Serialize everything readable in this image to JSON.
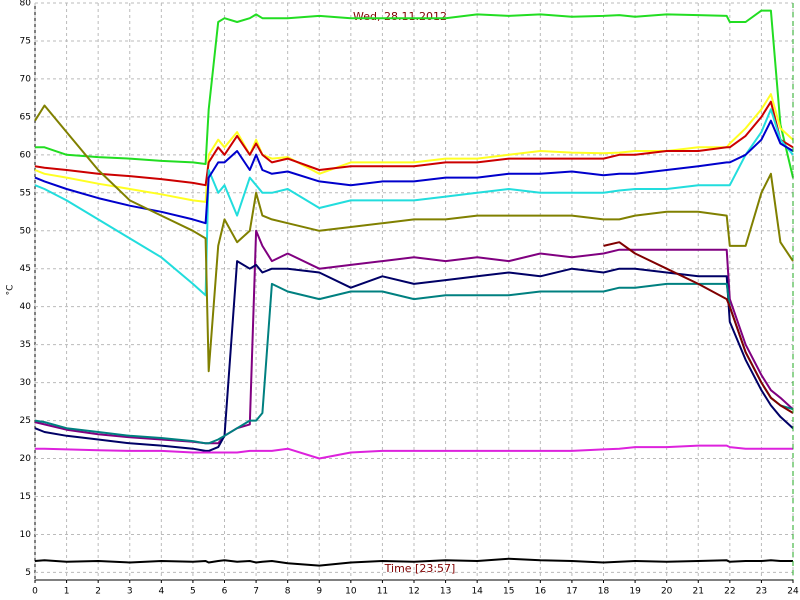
{
  "chart_data": {
    "type": "line",
    "title": "Wed, 28.11.2012",
    "xlabel": "Time [23:57]",
    "ylabel": "°C",
    "x": [
      0,
      0.3,
      1,
      2,
      3,
      4,
      5,
      5.4,
      5.5,
      5.8,
      6,
      6.4,
      6.8,
      7,
      7.2,
      7.5,
      8,
      9,
      10,
      11,
      12,
      13,
      14,
      15,
      16,
      17,
      18,
      18.5,
      19,
      20,
      21,
      21.9,
      22,
      22.5,
      23,
      23.3,
      23.6,
      24
    ],
    "xlim": [
      0,
      24
    ],
    "xticks": [
      0,
      1,
      2,
      3,
      4,
      5,
      6,
      7,
      8,
      9,
      10,
      11,
      12,
      13,
      14,
      15,
      16,
      17,
      18,
      19,
      20,
      21,
      22,
      23,
      24
    ],
    "ylim": [
      4,
      80
    ],
    "yticks": [
      5,
      10,
      15,
      20,
      25,
      30,
      35,
      40,
      45,
      50,
      55,
      60,
      65,
      70,
      75,
      80
    ],
    "grid": true,
    "cursor": 24,
    "cursor_color": "#22aa22",
    "series": [
      {
        "color": "#22dd22",
        "values": [
          61,
          61,
          60,
          59.7,
          59.5,
          59.2,
          59,
          58.8,
          66,
          77.5,
          78,
          77.5,
          78,
          78.5,
          78,
          78,
          78,
          78.3,
          78,
          78,
          78,
          78,
          78.5,
          78.3,
          78.5,
          78.2,
          78.3,
          78.4,
          78.2,
          78.5,
          78.4,
          78.3,
          77.5,
          77.5,
          79,
          79,
          64,
          57
        ]
      },
      {
        "color": "#ffff22",
        "values": [
          58,
          57.5,
          57,
          56.2,
          55.5,
          54.8,
          54,
          53.8,
          60,
          62,
          61,
          63,
          60,
          62,
          60,
          59.5,
          59.7,
          57.5,
          59,
          59,
          59,
          59.5,
          59.5,
          60,
          60.5,
          60.3,
          60.2,
          60.3,
          60.5,
          60.5,
          61,
          61,
          61.5,
          63.5,
          66,
          68,
          63.5,
          62
        ]
      },
      {
        "color": "#cc0000",
        "values": [
          58.5,
          58.3,
          58,
          57.5,
          57.2,
          56.8,
          56.3,
          56,
          59,
          61,
          60,
          62.5,
          60,
          61.5,
          60,
          59,
          59.5,
          58,
          58.5,
          58.5,
          58.5,
          59,
          59,
          59.5,
          59.5,
          59.5,
          59.5,
          60,
          60,
          60.5,
          60.5,
          61,
          61,
          62.5,
          65,
          67,
          62,
          61
        ]
      },
      {
        "color": "#22dddd",
        "values": [
          56,
          55.5,
          54,
          51.5,
          49,
          46.5,
          43,
          41.5,
          58,
          55,
          56,
          52,
          57,
          56,
          55,
          55,
          55.5,
          53,
          54,
          54,
          54,
          54.5,
          55,
          55.5,
          55,
          55,
          55,
          55.3,
          55.5,
          55.5,
          56,
          56,
          56,
          60,
          63,
          66,
          62,
          60
        ]
      },
      {
        "color": "#0000cc",
        "values": [
          57,
          56.5,
          55.5,
          54.3,
          53.3,
          52.5,
          51.5,
          51,
          57,
          59,
          59,
          60.5,
          58,
          60,
          58,
          57.5,
          57.8,
          56.5,
          56,
          56.5,
          56.5,
          57,
          57,
          57.5,
          57.5,
          57.8,
          57.3,
          57.5,
          57.5,
          58,
          58.5,
          59,
          59,
          60,
          62,
          64.5,
          61.5,
          60.5
        ]
      },
      {
        "color": "#808000",
        "values": [
          64.5,
          66.5,
          63,
          58,
          54,
          52,
          50,
          49,
          31.5,
          48,
          51.5,
          48.5,
          50,
          55,
          52,
          51.5,
          51,
          50,
          50.5,
          51,
          51.5,
          51.5,
          52,
          52,
          52,
          52,
          51.5,
          51.5,
          52,
          52.5,
          52.5,
          52,
          48,
          48,
          55,
          57.5,
          48.5,
          46
        ]
      },
      {
        "color": "#800080",
        "values": [
          24.8,
          24.5,
          23.8,
          23.2,
          22.8,
          22.5,
          22.2,
          22,
          22,
          22,
          23,
          24,
          24.5,
          50,
          48,
          46,
          47,
          45,
          45.5,
          46,
          46.5,
          46,
          46.5,
          46,
          47,
          46.5,
          47,
          47.5,
          47.5,
          47.5,
          47.5,
          47.5,
          41,
          35,
          31,
          29,
          28,
          26.5
        ]
      },
      {
        "color": "#000066",
        "values": [
          24,
          23.5,
          23,
          22.5,
          22,
          21.7,
          21.3,
          21,
          21,
          21.5,
          23,
          46,
          45,
          45.5,
          44.5,
          45,
          45,
          44.5,
          42.5,
          44,
          43,
          43.5,
          44,
          44.5,
          44,
          45,
          44.5,
          45,
          45,
          44.5,
          44,
          44,
          38,
          33,
          29,
          27,
          25.5,
          24
        ]
      },
      {
        "color": "#008080",
        "values": [
          25,
          24.8,
          24,
          23.5,
          23,
          22.7,
          22.3,
          22,
          22,
          22.5,
          23,
          24,
          25,
          25,
          26,
          43,
          42,
          41,
          42,
          42,
          41,
          41.5,
          41.5,
          41.5,
          42,
          42,
          42,
          42.5,
          42.5,
          43,
          43,
          43,
          40,
          34,
          30,
          28,
          27,
          26.5
        ]
      },
      {
        "color": "#800000",
        "values": [
          null,
          null,
          null,
          null,
          null,
          null,
          null,
          null,
          null,
          null,
          null,
          null,
          null,
          null,
          null,
          null,
          null,
          null,
          null,
          null,
          null,
          null,
          null,
          null,
          null,
          null,
          48,
          48.5,
          47,
          45,
          43,
          41,
          40,
          34,
          30,
          28,
          27,
          26
        ]
      },
      {
        "color": "#dd22dd",
        "values": [
          21.3,
          21.3,
          21.2,
          21.1,
          21,
          21,
          20.8,
          20.8,
          20.8,
          20.8,
          20.8,
          20.8,
          21,
          21,
          21,
          21,
          21.3,
          20,
          20.8,
          21,
          21,
          21,
          21,
          21,
          21,
          21,
          21.2,
          21.3,
          21.5,
          21.5,
          21.7,
          21.7,
          21.5,
          21.3,
          21.3,
          21.3,
          21.3,
          21.3
        ]
      },
      {
        "color": "#000000",
        "values": [
          6.5,
          6.6,
          6.4,
          6.5,
          6.3,
          6.5,
          6.4,
          6.5,
          6.3,
          6.5,
          6.6,
          6.4,
          6.5,
          6.3,
          6.4,
          6.5,
          6.2,
          5.9,
          6.3,
          6.5,
          6.4,
          6.6,
          6.5,
          6.8,
          6.6,
          6.5,
          6.3,
          6.4,
          6.5,
          6.4,
          6.5,
          6.6,
          6.4,
          6.5,
          6.5,
          6.6,
          6.5,
          6.5
        ]
      }
    ]
  }
}
